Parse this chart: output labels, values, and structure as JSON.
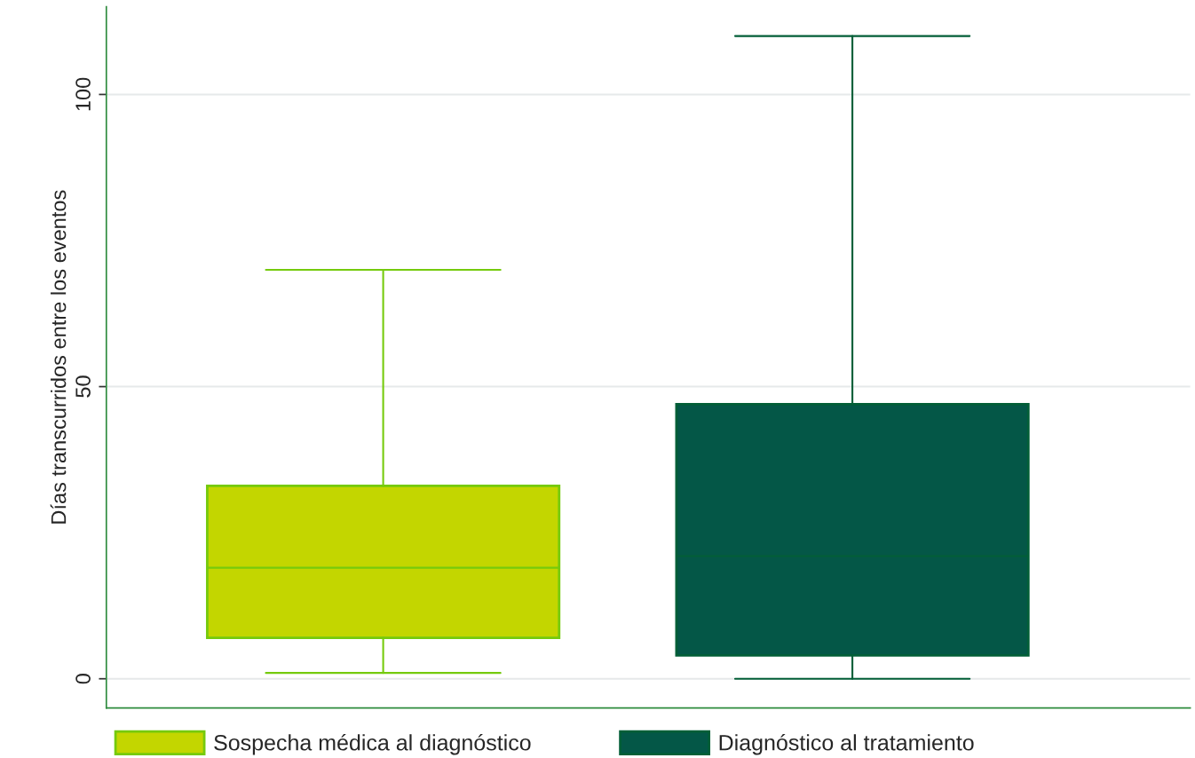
{
  "chart_data": {
    "type": "box",
    "ylabel": "Días transcurridos entre los eventos",
    "categories": [
      null
    ],
    "series": [
      {
        "name": "Sospecha médica al diagnóstico",
        "color": "#c3d600",
        "boxes": [
          {
            "low": 1,
            "q1": 7,
            "median": 19,
            "q3": 33,
            "high": 70
          }
        ]
      },
      {
        "name": "Diagnóstico al tratamiento",
        "color": "#045747",
        "boxes": [
          {
            "low": 0,
            "q1": 4,
            "median": 21,
            "q3": 47,
            "high": 110
          }
        ]
      }
    ],
    "ylim": [
      -5,
      115
    ],
    "yticks": [
      0,
      50,
      100
    ],
    "grid": "y",
    "legend": "bottom"
  }
}
